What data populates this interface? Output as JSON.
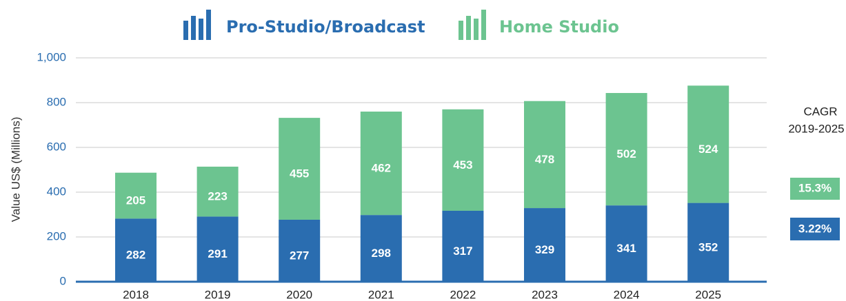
{
  "chart_data": {
    "type": "stacked_bar",
    "y_label": "Value US$ (Millions)",
    "categories": [
      "2018",
      "2019",
      "2020",
      "2021",
      "2022",
      "2023",
      "2024",
      "2025"
    ],
    "series": [
      {
        "name": "Pro-Studio/Broadcast",
        "color": "#2a6db0",
        "values": [
          282,
          291,
          277,
          298,
          317,
          329,
          341,
          352
        ]
      },
      {
        "name": "Home Studio",
        "color": "#6cc490",
        "values": [
          205,
          223,
          455,
          462,
          453,
          478,
          502,
          524
        ]
      }
    ],
    "ylim": [
      0,
      1000
    ],
    "yticks": [
      0,
      200,
      400,
      600,
      800,
      {
        "value": 1000,
        "label": "1,000"
      }
    ],
    "grid": true,
    "annotations": [
      "CAGR",
      "2019-2025",
      "15.3%",
      "3.22%"
    ]
  }
}
